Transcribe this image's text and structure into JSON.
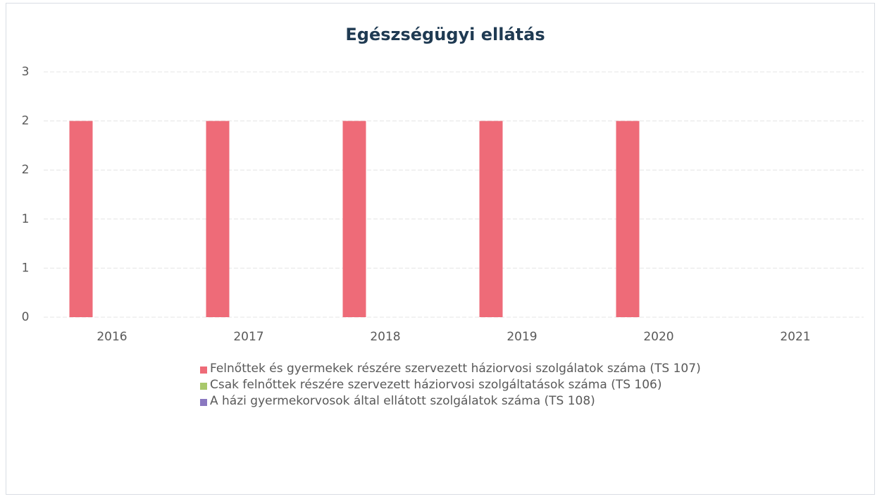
{
  "chart_data": {
    "type": "bar",
    "title": "Egészségügyi ellátás",
    "categories": [
      "2016",
      "2017",
      "2018",
      "2019",
      "2020",
      "2021"
    ],
    "series": [
      {
        "name": "Felnőttek és gyermekek részére szervezett háziorvosi szolgálatok száma (TS 107)",
        "color": "#ee6b78",
        "values": [
          2,
          2,
          2,
          2,
          2,
          null
        ]
      },
      {
        "name": "Csak felnőttek részére szervezett háziorvosi szolgáltatások száma (TS 106)",
        "color": "#a9c86b",
        "values": [
          null,
          null,
          null,
          null,
          null,
          null
        ]
      },
      {
        "name": "A házi gyermekorvosok által ellátott szolgálatok száma (TS 108)",
        "color": "#8a78c0",
        "values": [
          null,
          null,
          null,
          null,
          null,
          null
        ]
      }
    ],
    "ylim": [
      0,
      2.5
    ],
    "yticks": [
      0,
      {
        "value": 0.5,
        "label": "1"
      },
      1,
      {
        "value": 1.5,
        "label": "2"
      },
      2,
      {
        "value": 2.5,
        "label": "3"
      }
    ],
    "grid": true,
    "legend": "bottom"
  }
}
